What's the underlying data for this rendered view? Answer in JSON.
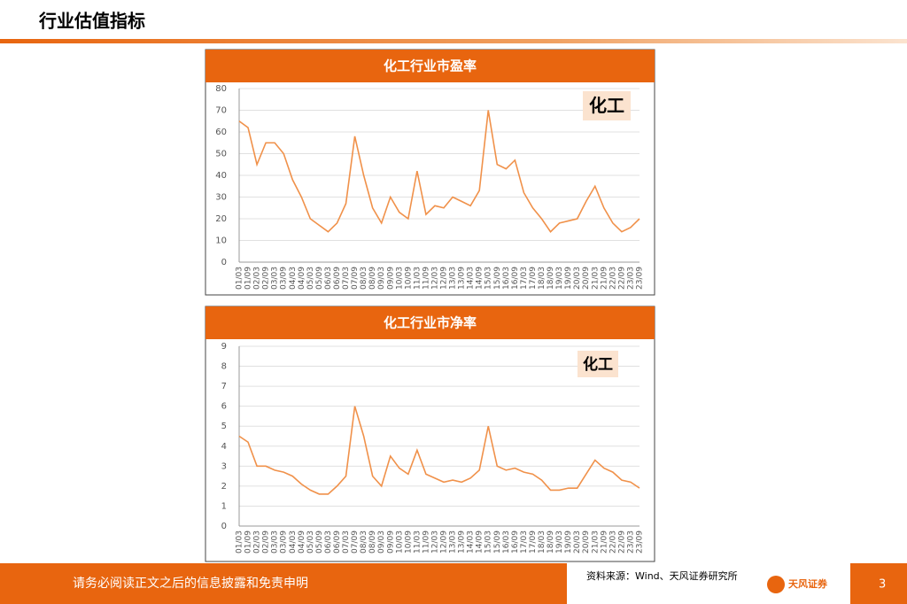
{
  "header": {
    "title": "行业估值指标"
  },
  "chart_data": [
    {
      "type": "line",
      "title": "化工行业市盈率",
      "annotation": "化工",
      "categories": [
        "01/03",
        "01/09",
        "02/03",
        "02/09",
        "03/03",
        "03/09",
        "04/03",
        "04/09",
        "05/03",
        "05/09",
        "06/03",
        "06/09",
        "07/03",
        "07/09",
        "08/03",
        "08/09",
        "09/03",
        "09/09",
        "10/03",
        "10/09",
        "11/03",
        "11/09",
        "12/03",
        "12/09",
        "13/03",
        "13/09",
        "14/03",
        "14/09",
        "15/03",
        "15/09",
        "16/03",
        "16/09",
        "17/03",
        "17/09",
        "18/03",
        "18/09",
        "19/03",
        "19/09",
        "20/03",
        "20/09",
        "21/03",
        "21/09",
        "22/03",
        "22/09",
        "23/03",
        "23/09"
      ],
      "series": [
        {
          "color": "#f0914a",
          "values": [
            65,
            62,
            45,
            55,
            55,
            50,
            38,
            30,
            20,
            17,
            14,
            18,
            27,
            58,
            40,
            25,
            18,
            30,
            23,
            20,
            42,
            22,
            26,
            25,
            30,
            28,
            26,
            33,
            70,
            45,
            43,
            47,
            32,
            25,
            20,
            14,
            18,
            19,
            20,
            28,
            35,
            25,
            18,
            14,
            16,
            20
          ]
        }
      ],
      "ylim": [
        0,
        80
      ],
      "yticks": [
        0,
        10,
        20,
        30,
        40,
        50,
        60,
        70,
        80
      ],
      "grid": true
    },
    {
      "type": "line",
      "title": "化工行业市净率",
      "annotation": "化工",
      "categories": [
        "01/03",
        "01/09",
        "02/03",
        "02/09",
        "03/03",
        "03/09",
        "04/03",
        "04/09",
        "05/03",
        "05/09",
        "06/03",
        "06/09",
        "07/03",
        "07/09",
        "08/03",
        "08/09",
        "09/03",
        "09/09",
        "10/03",
        "10/09",
        "11/03",
        "11/09",
        "12/03",
        "12/09",
        "13/03",
        "13/09",
        "14/03",
        "14/09",
        "15/03",
        "15/09",
        "16/03",
        "16/09",
        "17/03",
        "17/09",
        "18/03",
        "18/09",
        "19/03",
        "19/09",
        "20/03",
        "20/09",
        "21/03",
        "21/09",
        "22/03",
        "22/09",
        "23/03",
        "23/09"
      ],
      "series": [
        {
          "color": "#f0914a",
          "values": [
            4.5,
            4.2,
            3.0,
            3.0,
            2.8,
            2.7,
            2.5,
            2.1,
            1.8,
            1.6,
            1.6,
            2.0,
            2.5,
            6.0,
            4.5,
            2.5,
            2.0,
            3.5,
            2.9,
            2.6,
            3.8,
            2.6,
            2.4,
            2.2,
            2.3,
            2.2,
            2.4,
            2.8,
            5.0,
            3.0,
            2.8,
            2.9,
            2.7,
            2.6,
            2.3,
            1.8,
            1.8,
            1.9,
            1.9,
            2.6,
            3.3,
            2.9,
            2.7,
            2.3,
            2.2,
            1.9
          ]
        }
      ],
      "ylim": [
        0,
        9
      ],
      "yticks": [
        0,
        1,
        2,
        3,
        4,
        5,
        6,
        7,
        8,
        9
      ],
      "grid": true
    }
  ],
  "footer": {
    "disclaimer": "请务必阅读正文之后的信息披露和免责申明",
    "source": "资料来源：Wind、天风证券研究所",
    "logo": "天风证券",
    "page": "3"
  }
}
